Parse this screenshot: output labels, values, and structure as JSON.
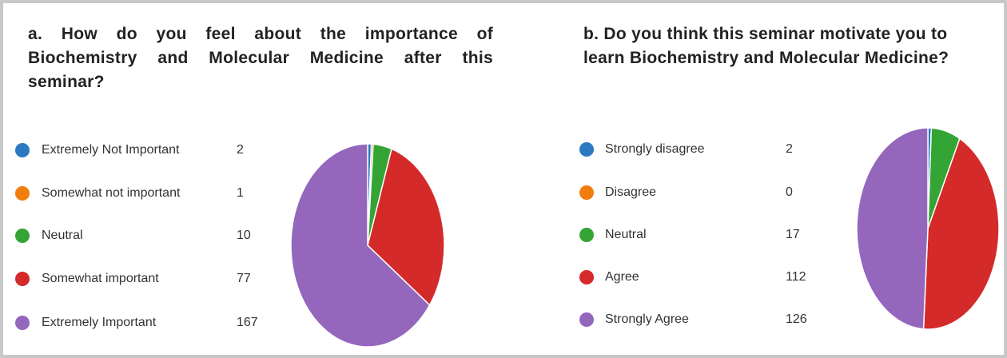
{
  "chart_data": [
    {
      "type": "pie",
      "title": "a. How do you feel about the importance of Biochemistry and Molecular Medicine after this seminar?",
      "categories": [
        "Extremely Not Important",
        "Somewhat not important",
        "Neutral",
        "Somewhat important",
        "Extremely  Important"
      ],
      "values": [
        2,
        1,
        10,
        77,
        167
      ],
      "colors": [
        "#2b79c2",
        "#f07d0c",
        "#34a535",
        "#d42a2a",
        "#9467bd"
      ]
    },
    {
      "type": "pie",
      "title": "b. Do you think this seminar motivate you to learn Biochemistry and Molecular Medicine?",
      "categories": [
        "Strongly disagree",
        "Disagree",
        "Neutral",
        "Agree",
        "Strongly Agree"
      ],
      "values": [
        2,
        0,
        17,
        112,
        126
      ],
      "colors": [
        "#2b79c2",
        "#f07d0c",
        "#34a535",
        "#d42a2a",
        "#9467bd"
      ]
    }
  ]
}
